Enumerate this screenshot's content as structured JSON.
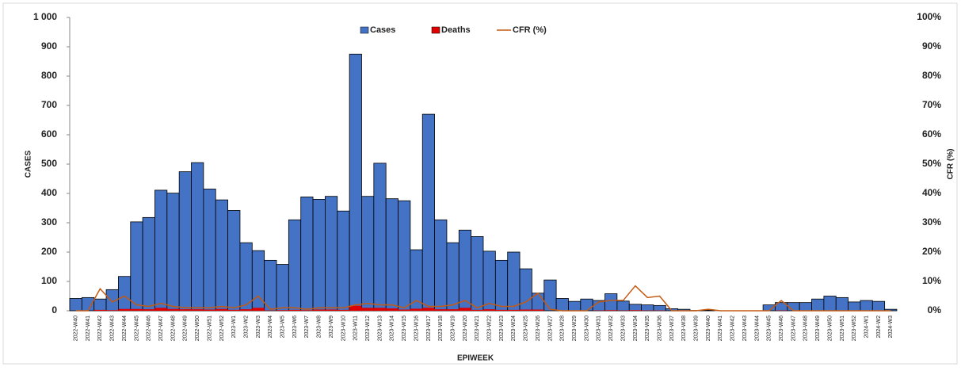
{
  "chart_data": {
    "type": "bar-line",
    "x_label": "EPIWEEK",
    "y_label": "CASES",
    "y2_label": "CFR (%)",
    "categories": [
      "2022-W40",
      "2022-W41",
      "2022-W42",
      "2022-W43",
      "2022-W44",
      "2022-W45",
      "2022-W46",
      "2022-W47",
      "2022-W48",
      "2022-W49",
      "2022-W50",
      "2022-W51",
      "2022-W52",
      "2023-W1",
      "2023-W2",
      "2023-W3",
      "2023-W4",
      "2023-W5",
      "2023-W6",
      "2023-W7",
      "2023-W8",
      "2023-W9",
      "2023-W10",
      "2023-W11",
      "2023-W12",
      "2023-W13",
      "2023-W14",
      "2023-W15",
      "2023-W16",
      "2023-W17",
      "2023-W18",
      "2023-W19",
      "2023-W20",
      "2023-W21",
      "2023-W22",
      "2023-W23",
      "2023-W24",
      "2023-W25",
      "2023-W26",
      "2023-W27",
      "2023-W28",
      "2023-W29",
      "2023-W30",
      "2023-W31",
      "2023-W32",
      "2023-W33",
      "2023-W34",
      "2023-W35",
      "2023-W36",
      "2023-W37",
      "2023-W38",
      "2023-W39",
      "2023-W40",
      "2023-W41",
      "2023-W42",
      "2023-W43",
      "2023-W44",
      "2023-W45",
      "2023-W46",
      "2023-W47",
      "2023-W48",
      "2023-W49",
      "2023-W50",
      "2023-W51",
      "2023-W52",
      "2024-W1",
      "2024-W2",
      "2024-W3"
    ],
    "series": [
      {
        "name": "Cases",
        "kind": "bar",
        "color": "#4472c4",
        "values": [
          42,
          45,
          40,
          72,
          117,
          303,
          318,
          411,
          401,
          474,
          505,
          415,
          378,
          342,
          232,
          205,
          172,
          158,
          310,
          388,
          380,
          390,
          340,
          875,
          390,
          503,
          382,
          375,
          208,
          670,
          310,
          232,
          275,
          253,
          203,
          172,
          200,
          143,
          60,
          105,
          42,
          32,
          40,
          35,
          58,
          33,
          22,
          20,
          18,
          7,
          5,
          1,
          2,
          0,
          0,
          0,
          0,
          20,
          28,
          28,
          28,
          40,
          50,
          45,
          30,
          35,
          32,
          5
        ]
      },
      {
        "name": "Deaths",
        "kind": "bar",
        "color": "#e00000",
        "values": [
          0,
          0,
          3,
          2,
          6,
          6,
          5,
          10,
          6,
          5,
          5,
          4,
          6,
          3,
          5,
          10,
          1,
          2,
          3,
          2,
          4,
          4,
          3,
          17,
          10,
          10,
          8,
          4,
          7,
          10,
          5,
          5,
          10,
          3,
          5,
          3,
          3,
          4,
          4,
          0,
          0,
          0,
          0,
          1,
          2,
          1,
          2,
          1,
          1,
          0,
          0,
          0,
          0,
          0,
          0,
          0,
          0,
          0,
          1,
          0,
          0,
          0,
          0,
          0,
          0,
          0,
          0,
          0
        ]
      },
      {
        "name": "CFR (%)",
        "kind": "line",
        "axis": "y2",
        "color": "#c55a11",
        "values": [
          0,
          0,
          7.5,
          3,
          5,
          2,
          1.5,
          2.5,
          1.5,
          1,
          1,
          1,
          1.5,
          1,
          2,
          5,
          0.5,
          1,
          1,
          0.5,
          1,
          1,
          1,
          2,
          2.5,
          2,
          2,
          1,
          3.5,
          1.5,
          1.5,
          2,
          3.5,
          1,
          2.5,
          1.5,
          1.5,
          3,
          6,
          0.5,
          0,
          0,
          0,
          3,
          3.5,
          3.5,
          8.5,
          4.5,
          5,
          0,
          0,
          0,
          0.5,
          0,
          0,
          0,
          0,
          0,
          3.5,
          0,
          0,
          0,
          0,
          0,
          0,
          0,
          0,
          0
        ]
      }
    ],
    "ylim": [
      0,
      1000
    ],
    "yticks": [
      0,
      100,
      200,
      300,
      400,
      500,
      600,
      700,
      800,
      900,
      {
        "value": 1000,
        "label": "1 000"
      }
    ],
    "y2lim": [
      0,
      100
    ],
    "y2ticks": [
      {
        "value": 0,
        "label": "0%"
      },
      {
        "value": 10,
        "label": "10%"
      },
      {
        "value": 20,
        "label": "20%"
      },
      {
        "value": 30,
        "label": "30%"
      },
      {
        "value": 40,
        "label": "40%"
      },
      {
        "value": 50,
        "label": "50%"
      },
      {
        "value": 60,
        "label": "60%"
      },
      {
        "value": 70,
        "label": "70%"
      },
      {
        "value": 80,
        "label": "80%"
      },
      {
        "value": 90,
        "label": "90%"
      },
      {
        "value": 100,
        "label": "100%"
      }
    ],
    "legend": "top"
  }
}
